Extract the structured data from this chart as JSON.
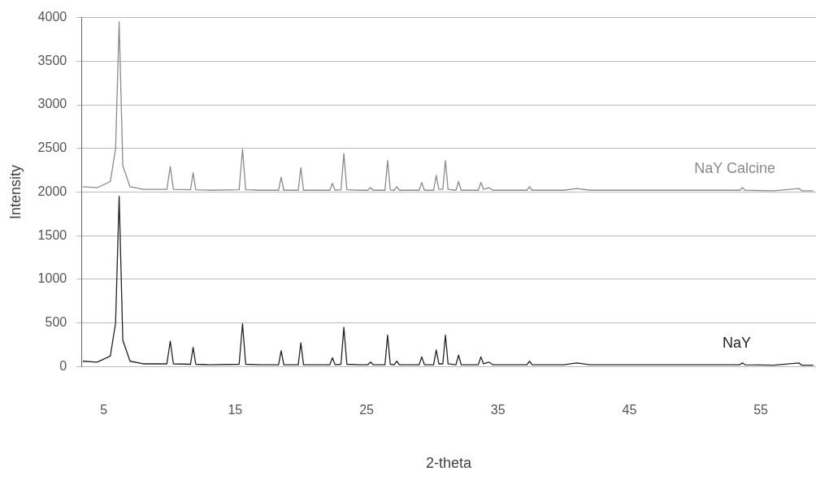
{
  "chart_data": {
    "type": "line",
    "xlabel": "2-theta",
    "ylabel": "Intensity",
    "xlim": [
      3.3,
      59.2
    ],
    "xticks": [
      5,
      15,
      25,
      35,
      45,
      55
    ],
    "ylim": [
      0,
      4000
    ],
    "yticks": [
      0,
      500,
      1000,
      1500,
      2000,
      2500,
      3000,
      3500,
      4000
    ],
    "grid": "y",
    "legend": false,
    "marker": "none",
    "x": [
      3.4,
      4.5,
      5.5,
      5.9,
      6.17,
      6.45,
      7,
      8,
      9.8,
      10.06,
      10.3,
      11.6,
      11.8,
      12,
      13,
      15.3,
      15.56,
      15.8,
      17,
      18.3,
      18.5,
      18.7,
      19.8,
      20.0,
      20.2,
      21,
      22.2,
      22.4,
      22.6,
      23.05,
      23.27,
      23.5,
      24.5,
      25.1,
      25.3,
      25.5,
      26.4,
      26.6,
      26.8,
      27.1,
      27.3,
      27.5,
      28.5,
      29.0,
      29.2,
      29.4,
      30.1,
      30.3,
      30.5,
      30.8,
      31.0,
      31.2,
      31.8,
      32.0,
      32.2,
      33.5,
      33.7,
      33.9,
      34.3,
      34.6,
      36,
      37.2,
      37.4,
      37.6,
      40,
      41,
      42,
      45,
      50,
      53.4,
      53.6,
      53.8,
      56,
      57.9,
      58.1,
      59
    ],
    "series": [
      {
        "name": "NaY Calcine",
        "color": "#8a8a8a",
        "values": [
          2060,
          2050,
          2120,
          2500,
          3950,
          2300,
          2060,
          2030,
          2030,
          2290,
          2030,
          2025,
          2220,
          2025,
          2020,
          2025,
          2490,
          2025,
          2020,
          2020,
          2170,
          2020,
          2020,
          2280,
          2020,
          2020,
          2020,
          2100,
          2020,
          2025,
          2440,
          2025,
          2020,
          2020,
          2050,
          2020,
          2020,
          2360,
          2025,
          2020,
          2060,
          2020,
          2020,
          2020,
          2110,
          2020,
          2020,
          2190,
          2030,
          2030,
          2360,
          2030,
          2020,
          2120,
          2020,
          2020,
          2110,
          2030,
          2050,
          2020,
          2020,
          2020,
          2060,
          2020,
          2020,
          2040,
          2020,
          2020,
          2020,
          2020,
          2050,
          2020,
          2015,
          2040,
          2015,
          2015
        ]
      },
      {
        "name": "NaY",
        "color": "#222222",
        "values": [
          60,
          50,
          120,
          500,
          1950,
          300,
          60,
          30,
          30,
          290,
          30,
          25,
          220,
          25,
          20,
          25,
          490,
          25,
          20,
          20,
          180,
          20,
          20,
          270,
          20,
          20,
          20,
          100,
          20,
          25,
          450,
          25,
          20,
          20,
          50,
          20,
          20,
          360,
          25,
          20,
          60,
          20,
          20,
          20,
          110,
          20,
          20,
          190,
          30,
          30,
          360,
          30,
          20,
          130,
          20,
          20,
          110,
          30,
          50,
          20,
          20,
          20,
          60,
          20,
          20,
          40,
          20,
          20,
          20,
          20,
          40,
          20,
          15,
          40,
          15,
          15
        ]
      }
    ]
  }
}
